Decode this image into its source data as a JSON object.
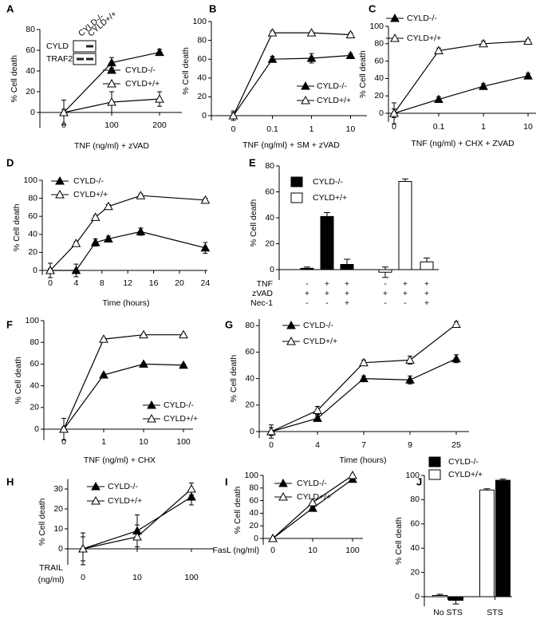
{
  "chart_data": [
    {
      "type": "line",
      "panel": "A",
      "ylabel": "% Cell death",
      "xlabel": "TNF (ng/ml) + zVAD",
      "categories": [
        "0",
        "100",
        "200"
      ],
      "ylim": [
        -15,
        80
      ],
      "yticks": [
        0,
        20,
        40,
        60,
        80
      ],
      "inset": {
        "lanes": [
          "CYLD-/-",
          "CYLD+/+"
        ],
        "rows": [
          "CYLD",
          "TRAF2"
        ]
      },
      "series": [
        {
          "name": "CYLD-/-",
          "color": "#000000",
          "values": [
            0,
            48,
            58
          ],
          "errors": [
            12,
            5,
            3
          ]
        },
        {
          "name": "CYLD+/+",
          "color": "#ffffff",
          "values": [
            0,
            10,
            13
          ],
          "errors": [
            3,
            10,
            7
          ]
        }
      ]
    },
    {
      "type": "line",
      "panel": "B",
      "ylabel": "% Cell death",
      "xlabel": "TNF (ng/ml) + SM + zVAD",
      "categories": [
        "0",
        "0.1",
        "1",
        "10"
      ],
      "ylim": [
        -5,
        100
      ],
      "yticks": [
        0,
        20,
        40,
        60,
        80,
        100
      ],
      "series": [
        {
          "name": "CYLD-/-",
          "color": "#000000",
          "values": [
            0,
            60,
            61,
            64
          ],
          "errors": [
            5,
            3,
            5,
            2
          ]
        },
        {
          "name": "CYLD+/+",
          "color": "#ffffff",
          "values": [
            0,
            88,
            88,
            86
          ],
          "errors": [
            3,
            2,
            1,
            2
          ]
        }
      ]
    },
    {
      "type": "line",
      "panel": "C",
      "ylabel": "% Cell death",
      "xlabel": "TNF (ng/ml) + CHX + ZVAD",
      "categories": [
        "0",
        "0.1",
        "1",
        "10"
      ],
      "ylim": [
        -10,
        100
      ],
      "yticks": [
        0,
        20,
        40,
        60,
        80,
        100
      ],
      "series": [
        {
          "name": "CYLD-/-",
          "color": "#000000",
          "values": [
            0,
            16,
            31,
            43
          ],
          "errors": [
            12,
            3,
            3,
            3
          ]
        },
        {
          "name": "CYLD+/+",
          "color": "#ffffff",
          "values": [
            0,
            72,
            80,
            83
          ],
          "errors": [
            5,
            3,
            3,
            2
          ]
        }
      ]
    },
    {
      "type": "line",
      "panel": "D",
      "ylabel": "% Cell death",
      "xlabel": "Time (hours)",
      "x": [
        0,
        4,
        7,
        9,
        14,
        24
      ],
      "xlim": [
        0,
        24
      ],
      "xticks": [
        0,
        4,
        8,
        12,
        16,
        20,
        24
      ],
      "ylim": [
        -5,
        100
      ],
      "yticks": [
        0,
        20,
        40,
        60,
        80,
        100
      ],
      "series": [
        {
          "name": "CYLD-/-",
          "color": "#000000",
          "values": [
            0,
            0,
            31,
            35,
            43,
            25
          ],
          "errors": [
            8,
            7,
            4,
            3,
            4,
            6
          ]
        },
        {
          "name": "CYLD+/+",
          "color": "#ffffff",
          "values": [
            0,
            30,
            59,
            71,
            83,
            78
          ],
          "errors": [
            2,
            2,
            2,
            2,
            2,
            2
          ]
        }
      ]
    },
    {
      "type": "bar",
      "panel": "E",
      "ylabel": "% Cell death",
      "ylim": [
        -8,
        80
      ],
      "yticks": [
        0,
        20,
        40,
        60,
        80
      ],
      "treatments": [
        {
          "label": "TNF",
          "signs": [
            "-",
            "+",
            "+",
            "-",
            "+",
            "+"
          ]
        },
        {
          "label": "zVAD",
          "signs": [
            "+",
            "+",
            "+",
            "+",
            "+",
            "+"
          ]
        },
        {
          "label": "Nec-1",
          "signs": [
            "-",
            "-",
            "+",
            "-",
            "-",
            "+"
          ]
        }
      ],
      "series": [
        {
          "name": "CYLD-/-",
          "color": "#000000",
          "values": [
            1,
            41,
            4,
            null,
            null,
            null
          ],
          "errors": [
            1,
            3,
            4,
            null,
            null,
            null
          ]
        },
        {
          "name": "CYLD+/+",
          "color": "#ffffff",
          "values": [
            null,
            null,
            null,
            -2,
            68,
            6
          ],
          "errors": [
            null,
            null,
            null,
            4,
            2,
            3
          ]
        }
      ]
    },
    {
      "type": "line",
      "panel": "F",
      "ylabel": "% Cell death",
      "xlabel": "TNF (ng/ml) + CHX",
      "categories": [
        "0",
        "1",
        "10",
        "100"
      ],
      "ylim": [
        -10,
        100
      ],
      "yticks": [
        0,
        20,
        40,
        60,
        80,
        100
      ],
      "series": [
        {
          "name": "CYLD-/-",
          "color": "#000000",
          "values": [
            0,
            50,
            60,
            59
          ],
          "errors": [
            10,
            1,
            1,
            1
          ]
        },
        {
          "name": "CYLD+/+",
          "color": "#ffffff",
          "values": [
            0,
            83,
            87,
            87
          ],
          "errors": [
            2,
            1,
            1,
            1
          ]
        }
      ]
    },
    {
      "type": "line",
      "panel": "G",
      "ylabel": "% Cell death",
      "xlabel": "Time (hours)",
      "categories": [
        "0",
        "4",
        "7",
        "9",
        "25"
      ],
      "ylim": [
        -5,
        85
      ],
      "yticks": [
        0,
        20,
        40,
        60,
        80
      ],
      "series": [
        {
          "name": "CYLD-/-",
          "color": "#000000",
          "values": [
            0,
            10,
            40,
            39,
            55
          ],
          "errors": [
            5,
            2,
            2,
            3,
            3
          ]
        },
        {
          "name": "CYLD+/+",
          "color": "#ffffff",
          "values": [
            0,
            16,
            52,
            54,
            81
          ],
          "errors": [
            3,
            3,
            2,
            3,
            2
          ]
        }
      ]
    },
    {
      "type": "line",
      "panel": "H",
      "ylabel": "% Cell death",
      "xlabel": [
        "TRAIL",
        "(ng/ml)"
      ],
      "categories": [
        "0",
        "10",
        "100"
      ],
      "ylim": [
        -8,
        35
      ],
      "yticks": [
        0,
        10,
        20,
        30
      ],
      "series": [
        {
          "name": "CYLD-/-",
          "color": "#000000",
          "values": [
            0,
            9,
            26
          ],
          "errors": [
            8,
            8,
            4
          ]
        },
        {
          "name": "CYLD+/+",
          "color": "#ffffff",
          "values": [
            0,
            6,
            30
          ],
          "errors": [
            6,
            6,
            3
          ]
        }
      ]
    },
    {
      "type": "line",
      "panel": "I",
      "ylabel": "% Cell death",
      "xlabel": "FasL (ng/ml)",
      "categories": [
        "0",
        "10",
        "100"
      ],
      "ylim": [
        -10,
        100
      ],
      "yticks": [
        0,
        20,
        40,
        60,
        80,
        100
      ],
      "series": [
        {
          "name": "CYLD-/-",
          "color": "#000000",
          "values": [
            0,
            48,
            94
          ],
          "errors": [
            1,
            2,
            1
          ]
        },
        {
          "name": "CYLD+/+",
          "color": "#ffffff",
          "values": [
            0,
            57,
            100
          ],
          "errors": [
            1,
            1,
            1
          ]
        }
      ]
    },
    {
      "type": "bar",
      "panel": "J",
      "ylabel": "% Cell death",
      "categories": [
        "No STS",
        "STS"
      ],
      "ylim": [
        -8,
        100
      ],
      "yticks": [
        0,
        20,
        40,
        60,
        80,
        100
      ],
      "series": [
        {
          "name": "CYLD-/-",
          "color": "#000000",
          "values": [
            -3,
            96
          ],
          "errors": [
            3,
            1
          ]
        },
        {
          "name": "CYLD+/+",
          "color": "#ffffff",
          "values": [
            1,
            88
          ],
          "errors": [
            1,
            1
          ]
        }
      ]
    }
  ]
}
